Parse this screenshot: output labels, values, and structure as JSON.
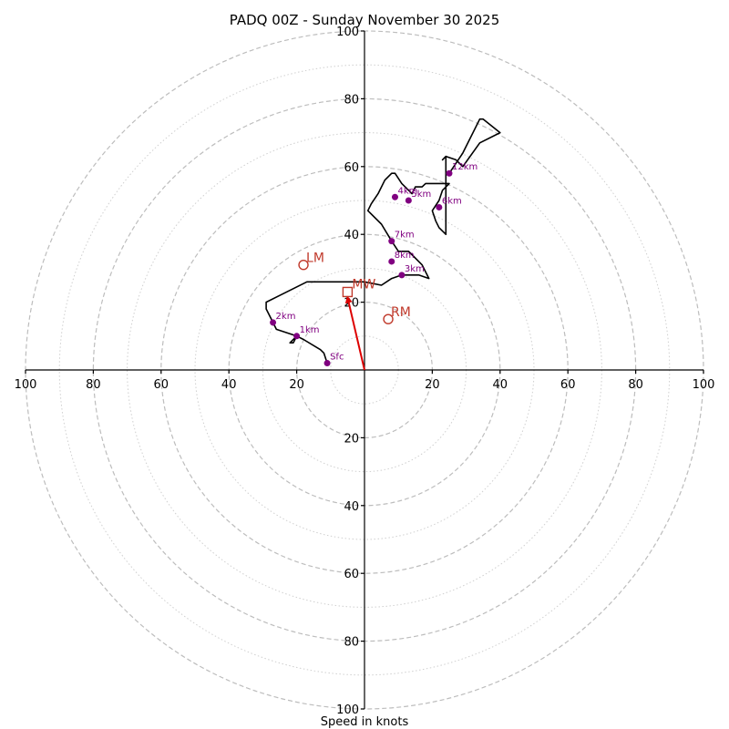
{
  "chart_data": {
    "type": "hodograph",
    "title": "PADQ 00Z - Sunday November 30 2025",
    "xlabel": "Speed in knots",
    "range": [
      -100,
      100
    ],
    "ring_major_every": 20,
    "ring_minor_every": 10,
    "x_tick_labels": [
      "100",
      "80",
      "60",
      "40",
      "20",
      "20",
      "40",
      "60",
      "80",
      "100"
    ],
    "x_tick_values": [
      -100,
      -80,
      -60,
      -40,
      -20,
      20,
      40,
      60,
      80,
      100
    ],
    "y_tick_labels_top": [
      "20",
      "40",
      "60",
      "80",
      "100"
    ],
    "y_tick_labels_bottom": [
      "20",
      "40",
      "60",
      "80",
      "100"
    ],
    "y_tick_values": [
      20,
      40,
      60,
      80,
      100
    ],
    "trace": [
      [
        -11,
        2
      ],
      [
        -12,
        5
      ],
      [
        -13,
        6
      ],
      [
        -18,
        9
      ],
      [
        -20,
        10
      ],
      [
        -21,
        8
      ],
      [
        -22,
        8
      ],
      [
        -20,
        10
      ],
      [
        -20,
        10
      ],
      [
        -26,
        12
      ],
      [
        -27,
        14
      ],
      [
        -29,
        18
      ],
      [
        -29,
        20
      ],
      [
        -25,
        22
      ],
      [
        -17,
        26
      ],
      [
        -10,
        26
      ],
      [
        -5,
        26
      ],
      [
        0,
        26
      ],
      [
        5,
        25
      ],
      [
        8,
        27
      ],
      [
        11,
        28
      ],
      [
        16,
        28
      ],
      [
        19,
        27
      ],
      [
        17,
        31
      ],
      [
        14,
        34
      ],
      [
        13,
        35
      ],
      [
        10,
        35
      ],
      [
        8,
        38
      ],
      [
        5,
        43
      ],
      [
        1,
        47
      ],
      [
        2,
        49
      ],
      [
        4,
        52
      ],
      [
        6,
        56
      ],
      [
        8,
        58
      ],
      [
        9,
        58
      ],
      [
        11,
        55
      ],
      [
        13,
        53
      ],
      [
        14,
        52
      ],
      [
        15,
        54
      ],
      [
        17,
        54
      ],
      [
        18,
        55
      ],
      [
        25,
        55
      ],
      [
        23,
        53
      ],
      [
        22,
        50
      ],
      [
        20,
        47
      ],
      [
        21,
        44
      ],
      [
        22,
        42
      ],
      [
        24,
        40
      ],
      [
        24,
        46
      ],
      [
        24,
        55
      ],
      [
        24,
        60
      ],
      [
        24,
        63
      ],
      [
        23,
        62
      ],
      [
        24,
        63
      ],
      [
        27,
        62
      ],
      [
        29,
        60
      ],
      [
        34,
        67
      ],
      [
        40,
        70
      ],
      [
        35,
        74
      ],
      [
        34,
        74
      ],
      [
        29,
        64
      ],
      [
        25,
        58
      ]
    ],
    "height_points": [
      {
        "label": "Sfc",
        "u": -11,
        "v": 2
      },
      {
        "label": "1km",
        "u": -20,
        "v": 10
      },
      {
        "label": "2km",
        "u": -27,
        "v": 14
      },
      {
        "label": "3km",
        "u": 11,
        "v": 28
      },
      {
        "label": "4km",
        "u": 9,
        "v": 51
      },
      {
        "label": "5km",
        "u": 13,
        "v": 50
      },
      {
        "label": "6km",
        "u": 22,
        "v": 48
      },
      {
        "label": "7km",
        "u": 8,
        "v": 38
      },
      {
        "label": "8km",
        "u": 8,
        "v": 32
      },
      {
        "label": "12km",
        "u": 25,
        "v": 58
      }
    ],
    "storm_motion": {
      "lm": {
        "label": "LM",
        "u": -18,
        "v": 31
      },
      "rm": {
        "label": "RM",
        "u": 7,
        "v": 15
      },
      "mw": {
        "label": "MW",
        "u": -5,
        "v": 23
      },
      "vector_color": "#dd0000",
      "marker_color": "#c0392b",
      "point_color": "#800080"
    }
  }
}
